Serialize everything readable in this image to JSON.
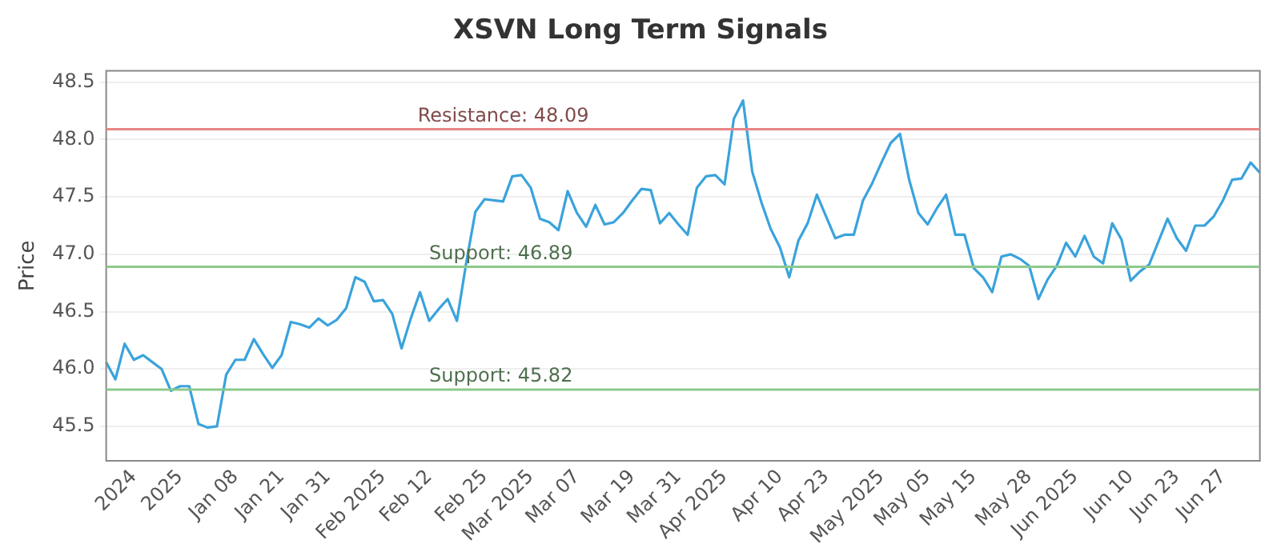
{
  "chart_data": {
    "type": "line",
    "title": "XSVN Long Term Signals",
    "ylabel": "Price",
    "categories": [
      null,
      null,
      null,
      "2024",
      null,
      null,
      null,
      null,
      "2025",
      null,
      null,
      null,
      null,
      null,
      "Jan 08",
      null,
      null,
      null,
      null,
      "Jan 21",
      null,
      null,
      null,
      null,
      "Jan 31",
      null,
      null,
      null,
      null,
      null,
      "Feb 2025",
      null,
      null,
      null,
      null,
      "Feb 12",
      null,
      null,
      null,
      null,
      null,
      "Feb 25",
      null,
      null,
      null,
      null,
      "Mar 2025",
      null,
      null,
      null,
      null,
      "Mar 07",
      null,
      null,
      null,
      null,
      null,
      "Mar 19",
      null,
      null,
      null,
      null,
      "Mar 31",
      null,
      null,
      null,
      null,
      "Apr 2025",
      null,
      null,
      null,
      null,
      null,
      "Apr 10",
      null,
      null,
      null,
      null,
      "Apr 23",
      null,
      null,
      null,
      null,
      null,
      "May 2025",
      null,
      null,
      null,
      null,
      "May 05",
      null,
      null,
      null,
      null,
      "May 15",
      null,
      null,
      null,
      null,
      null,
      "May 28",
      null,
      null,
      null,
      null,
      "Jun 2025",
      null,
      null,
      null,
      null,
      null,
      "Jun 10",
      null,
      null,
      null,
      null,
      "Jun 23",
      null,
      null,
      null,
      null,
      "Jun 27",
      null,
      null,
      null,
      null
    ],
    "series": [
      {
        "color": "#3aa3dc",
        "values": [
          46.06,
          45.91,
          46.22,
          46.08,
          46.12,
          46.06,
          46.0,
          45.81,
          45.85,
          45.85,
          45.52,
          45.49,
          45.5,
          45.95,
          46.08,
          46.08,
          46.26,
          46.13,
          46.01,
          46.12,
          46.41,
          46.39,
          46.36,
          46.44,
          46.38,
          46.43,
          46.53,
          46.8,
          46.76,
          46.59,
          46.6,
          46.48,
          46.18,
          46.44,
          46.67,
          46.42,
          46.52,
          46.61,
          46.42,
          46.92,
          47.37,
          47.48,
          47.47,
          47.46,
          47.68,
          47.69,
          47.58,
          47.31,
          47.28,
          47.21,
          47.55,
          47.36,
          47.24,
          47.43,
          47.26,
          47.28,
          47.36,
          47.47,
          47.57,
          47.56,
          47.27,
          47.36,
          47.26,
          47.17,
          47.58,
          47.68,
          47.69,
          47.61,
          48.18,
          48.34,
          47.72,
          47.45,
          47.22,
          47.06,
          46.8,
          47.12,
          47.27,
          47.52,
          47.33,
          47.14,
          47.17,
          47.17,
          47.47,
          47.62,
          47.8,
          47.97,
          48.05,
          47.65,
          47.36,
          47.26,
          47.4,
          47.52,
          47.17,
          47.17,
          46.88,
          46.8,
          46.67,
          46.98,
          47.0,
          46.96,
          46.9,
          46.61,
          46.78,
          46.9,
          47.1,
          46.98,
          47.16,
          46.98,
          46.92,
          47.27,
          47.13,
          46.77,
          46.85,
          46.91,
          47.11,
          47.31,
          47.14,
          47.03,
          47.25,
          47.25,
          47.33,
          47.47,
          47.65,
          47.66,
          47.8,
          47.71
        ]
      }
    ],
    "ylim": [
      45.2,
      48.6
    ],
    "yticks": [
      45.5,
      {
        "value": 46,
        "label": "46.0"
      },
      46.5,
      {
        "value": 47,
        "label": "47.0"
      },
      47.5,
      {
        "value": 48,
        "label": "48.0"
      },
      48.5
    ],
    "grid": "y",
    "marker": "none",
    "line_style": "solid",
    "ref_lines": [
      {
        "axis": "y",
        "value": 48.09,
        "label": "Resistance: 48.09",
        "color": "#e88585"
      },
      {
        "axis": "y",
        "value": 46.89,
        "label": "Support: 46.89",
        "color": "#8cc98c"
      },
      {
        "axis": "y",
        "value": 45.82,
        "label": "Support: 45.82",
        "color": "#8cc98c"
      }
    ]
  }
}
